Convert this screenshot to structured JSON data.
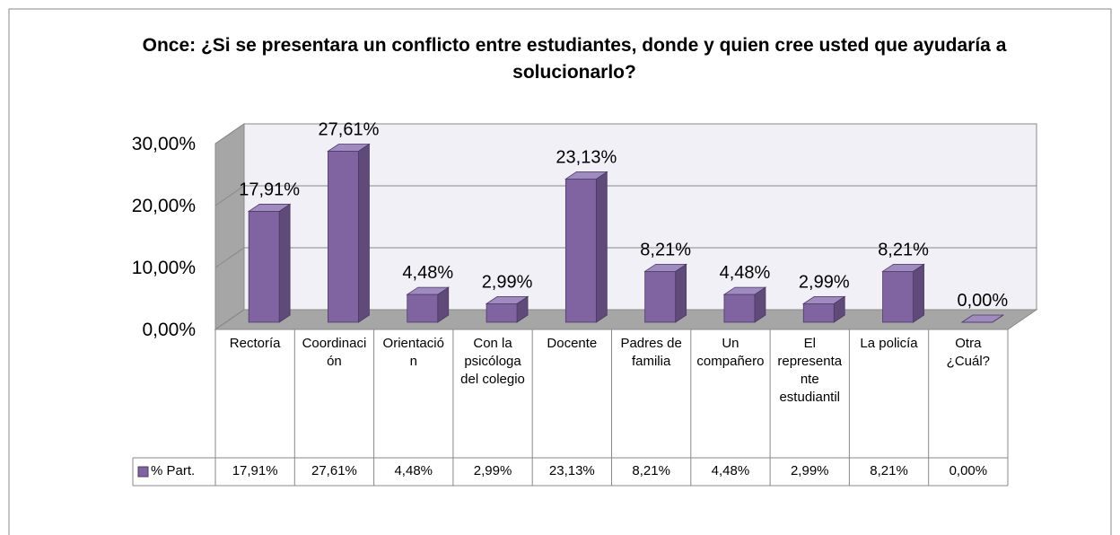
{
  "chart_data": {
    "type": "bar3d",
    "title": "Once: ¿Si se presentara un conflicto entre estudiantes, donde y quien cree usted que ayudaría a solucionarlo?",
    "categories": [
      "Rectoría",
      "Coordinación",
      "Orientación",
      "Con la psicóloga del colegio",
      "Docente",
      "Padres de familia",
      "Un compañero",
      "El representante estudiantil",
      "La policía",
      "Otra ¿Cuál?"
    ],
    "series": [
      {
        "name": "% Part.",
        "color": "#8064a2",
        "values": [
          17.91,
          27.61,
          4.48,
          2.99,
          23.13,
          8.21,
          4.48,
          2.99,
          8.21,
          0
        ],
        "value_labels": [
          "17,91%",
          "27,61%",
          "4,48%",
          "2,99%",
          "23,13%",
          "8,21%",
          "4,48%",
          "2,99%",
          "8,21%",
          "0,00%"
        ]
      }
    ],
    "ylim": [
      0,
      30
    ],
    "yticks": [
      {
        "value": 0,
        "label": "0,00%"
      },
      {
        "value": 10,
        "label": "10,00%"
      },
      {
        "value": 20,
        "label": "20,00%"
      },
      {
        "value": 30,
        "label": "30,00%"
      }
    ],
    "grid": true,
    "data_table": true
  }
}
